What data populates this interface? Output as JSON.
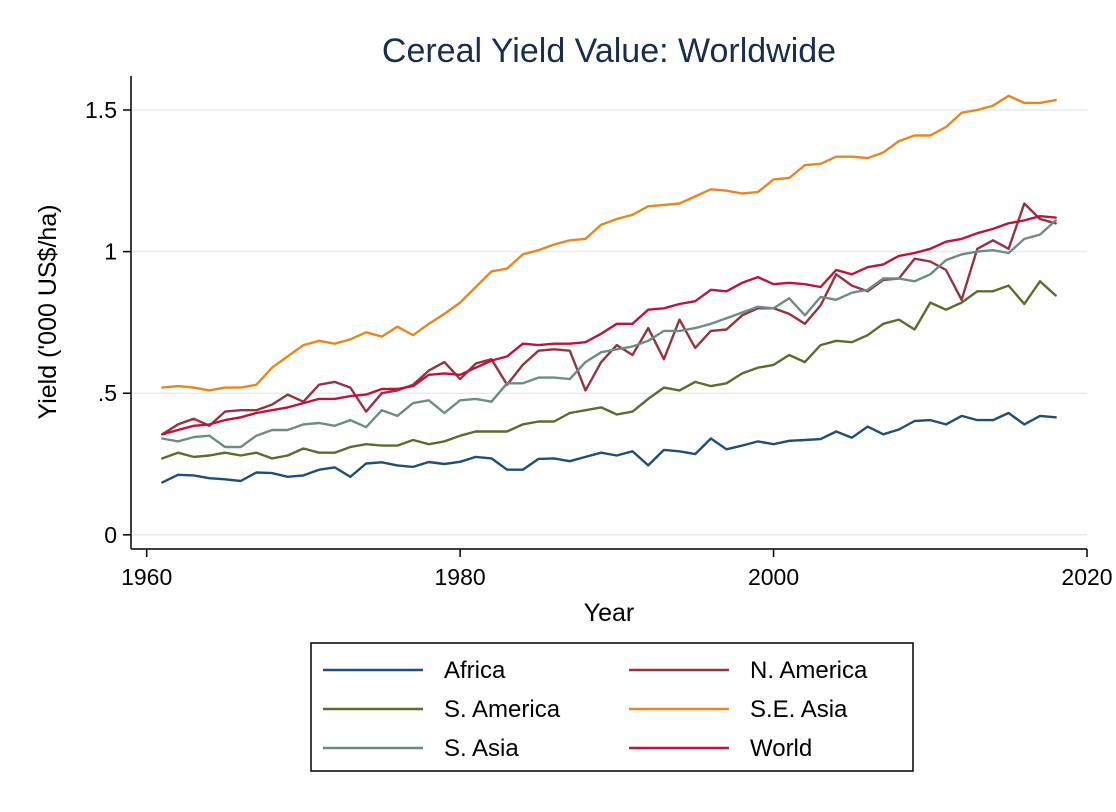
{
  "chart_data": {
    "type": "line",
    "title": "Cereal Yield Value: Worldwide",
    "xlabel": "Year",
    "ylabel": "Yield ('000 US$/ha)",
    "xlim": [
      1959,
      2020
    ],
    "ylim": [
      -0.05,
      1.62
    ],
    "xticks": [
      {
        "value": 1960,
        "label": "1960"
      },
      {
        "value": 1980,
        "label": "1980"
      },
      {
        "value": 2000,
        "label": "2000"
      },
      {
        "value": 2020,
        "label": "2020"
      }
    ],
    "yticks": [
      {
        "value": 0,
        "label": "0"
      },
      {
        "value": 0.5,
        "label": ".5"
      },
      {
        "value": 1,
        "label": "1"
      },
      {
        "value": 1.5,
        "label": "1.5"
      }
    ],
    "grid": true,
    "legend_position": "bottom",
    "x": [
      1961,
      1962,
      1963,
      1964,
      1965,
      1966,
      1967,
      1968,
      1969,
      1970,
      1971,
      1972,
      1973,
      1974,
      1975,
      1976,
      1977,
      1978,
      1979,
      1980,
      1981,
      1982,
      1983,
      1984,
      1985,
      1986,
      1987,
      1988,
      1989,
      1990,
      1991,
      1992,
      1993,
      1994,
      1995,
      1996,
      1997,
      1998,
      1999,
      2000,
      2001,
      2002,
      2003,
      2004,
      2005,
      2006,
      2007,
      2008,
      2009,
      2010,
      2011,
      2012,
      2013,
      2014,
      2015,
      2016,
      2017,
      2018
    ],
    "series": [
      {
        "name": "Africa",
        "color": "#1f4e79",
        "values": [
          0.185,
          0.212,
          0.21,
          0.2,
          0.196,
          0.19,
          0.22,
          0.218,
          0.205,
          0.21,
          0.23,
          0.238,
          0.205,
          0.252,
          0.256,
          0.245,
          0.24,
          0.257,
          0.25,
          0.258,
          0.275,
          0.27,
          0.23,
          0.23,
          0.268,
          0.27,
          0.26,
          0.275,
          0.29,
          0.28,
          0.295,
          0.245,
          0.3,
          0.295,
          0.285,
          0.34,
          0.302,
          0.315,
          0.33,
          0.32,
          0.332,
          0.335,
          0.338,
          0.365,
          0.343,
          0.382,
          0.355,
          0.372,
          0.402,
          0.405,
          0.39,
          0.42,
          0.405,
          0.405,
          0.43,
          0.39,
          0.42,
          0.415
        ]
      },
      {
        "name": "N. America",
        "color": "#943440",
        "values": [
          0.355,
          0.39,
          0.41,
          0.385,
          0.435,
          0.44,
          0.44,
          0.46,
          0.495,
          0.47,
          0.53,
          0.54,
          0.52,
          0.435,
          0.5,
          0.51,
          0.53,
          0.58,
          0.61,
          0.55,
          0.605,
          0.62,
          0.53,
          0.6,
          0.65,
          0.655,
          0.65,
          0.51,
          0.61,
          0.67,
          0.635,
          0.73,
          0.62,
          0.76,
          0.66,
          0.72,
          0.725,
          0.775,
          0.8,
          0.8,
          0.78,
          0.745,
          0.81,
          0.92,
          0.88,
          0.86,
          0.9,
          0.905,
          0.975,
          0.965,
          0.935,
          0.83,
          1.01,
          1.04,
          1.01,
          1.17,
          1.115,
          1.1
        ]
      },
      {
        "name": "S. America",
        "color": "#5a6d2b",
        "values": [
          0.27,
          0.29,
          0.275,
          0.28,
          0.29,
          0.28,
          0.29,
          0.27,
          0.28,
          0.305,
          0.29,
          0.29,
          0.31,
          0.32,
          0.315,
          0.315,
          0.335,
          0.32,
          0.33,
          0.35,
          0.365,
          0.365,
          0.365,
          0.39,
          0.4,
          0.4,
          0.43,
          0.44,
          0.45,
          0.425,
          0.435,
          0.48,
          0.52,
          0.51,
          0.54,
          0.525,
          0.535,
          0.57,
          0.59,
          0.6,
          0.635,
          0.61,
          0.67,
          0.685,
          0.68,
          0.705,
          0.745,
          0.76,
          0.725,
          0.82,
          0.795,
          0.82,
          0.86,
          0.86,
          0.88,
          0.815,
          0.895,
          0.845
        ]
      },
      {
        "name": "S.E. Asia",
        "color": "#e8871e",
        "values": [
          0.52,
          0.525,
          0.52,
          0.51,
          0.52,
          0.52,
          0.53,
          0.59,
          0.63,
          0.67,
          0.685,
          0.675,
          0.69,
          0.715,
          0.7,
          0.735,
          0.705,
          0.745,
          0.78,
          0.82,
          0.875,
          0.93,
          0.94,
          0.99,
          1.005,
          1.025,
          1.04,
          1.045,
          1.095,
          1.115,
          1.13,
          1.16,
          1.165,
          1.17,
          1.195,
          1.22,
          1.215,
          1.205,
          1.21,
          1.255,
          1.26,
          1.305,
          1.31,
          1.335,
          1.335,
          1.33,
          1.35,
          1.39,
          1.41,
          1.41,
          1.44,
          1.49,
          1.5,
          1.515,
          1.55,
          1.525,
          1.525,
          1.535
        ]
      },
      {
        "name": "S. Asia",
        "color": "#6f8b86",
        "values": [
          0.34,
          0.33,
          0.345,
          0.35,
          0.31,
          0.31,
          0.35,
          0.37,
          0.37,
          0.39,
          0.395,
          0.385,
          0.405,
          0.38,
          0.44,
          0.42,
          0.465,
          0.475,
          0.43,
          0.475,
          0.48,
          0.47,
          0.535,
          0.535,
          0.555,
          0.555,
          0.55,
          0.61,
          0.645,
          0.655,
          0.665,
          0.685,
          0.72,
          0.72,
          0.73,
          0.745,
          0.765,
          0.785,
          0.805,
          0.8,
          0.835,
          0.775,
          0.84,
          0.83,
          0.855,
          0.865,
          0.905,
          0.905,
          0.895,
          0.92,
          0.97,
          0.99,
          1.0,
          1.005,
          0.995,
          1.045,
          1.06,
          1.11
        ]
      },
      {
        "name": "World",
        "color": "#c0123a",
        "values": [
          0.355,
          0.37,
          0.385,
          0.39,
          0.405,
          0.415,
          0.43,
          0.44,
          0.45,
          0.465,
          0.48,
          0.48,
          0.49,
          0.495,
          0.515,
          0.515,
          0.525,
          0.565,
          0.57,
          0.565,
          0.59,
          0.615,
          0.63,
          0.675,
          0.67,
          0.675,
          0.675,
          0.68,
          0.71,
          0.745,
          0.745,
          0.795,
          0.8,
          0.815,
          0.825,
          0.865,
          0.86,
          0.89,
          0.91,
          0.885,
          0.89,
          0.885,
          0.875,
          0.935,
          0.92,
          0.945,
          0.955,
          0.985,
          0.995,
          1.01,
          1.035,
          1.045,
          1.065,
          1.08,
          1.1,
          1.11,
          1.125,
          1.12
        ]
      }
    ]
  }
}
